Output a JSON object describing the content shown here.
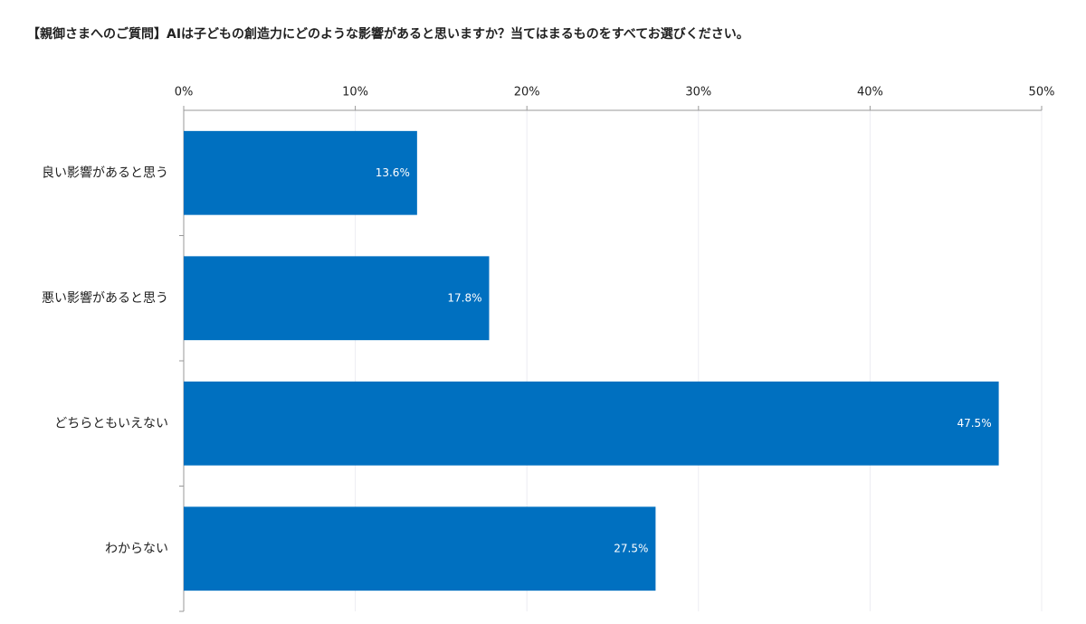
{
  "chart_data": {
    "type": "bar",
    "orientation": "horizontal",
    "title": "【親御さまへのご質問】AIは子どもの創造力にどのような影響があると思いますか？当てはまるものをすべてお選びください。",
    "categories": [
      "良い影響があると思う",
      "悪い影響があると思う",
      "どちらともいえない",
      "わからない"
    ],
    "values": [
      13.6,
      17.8,
      47.5,
      27.5
    ],
    "value_labels": [
      "13.6%",
      "17.8%",
      "47.5%",
      "27.5%"
    ],
    "color": "#0070c0",
    "xlim": [
      0,
      50
    ],
    "xticks": [
      {
        "value": 0,
        "label": "0%"
      },
      {
        "value": 10,
        "label": "10%"
      },
      {
        "value": 20,
        "label": "20%"
      },
      {
        "value": 30,
        "label": "30%"
      },
      {
        "value": 40,
        "label": "40%"
      },
      {
        "value": 50,
        "label": "50%"
      }
    ],
    "grid": true
  }
}
